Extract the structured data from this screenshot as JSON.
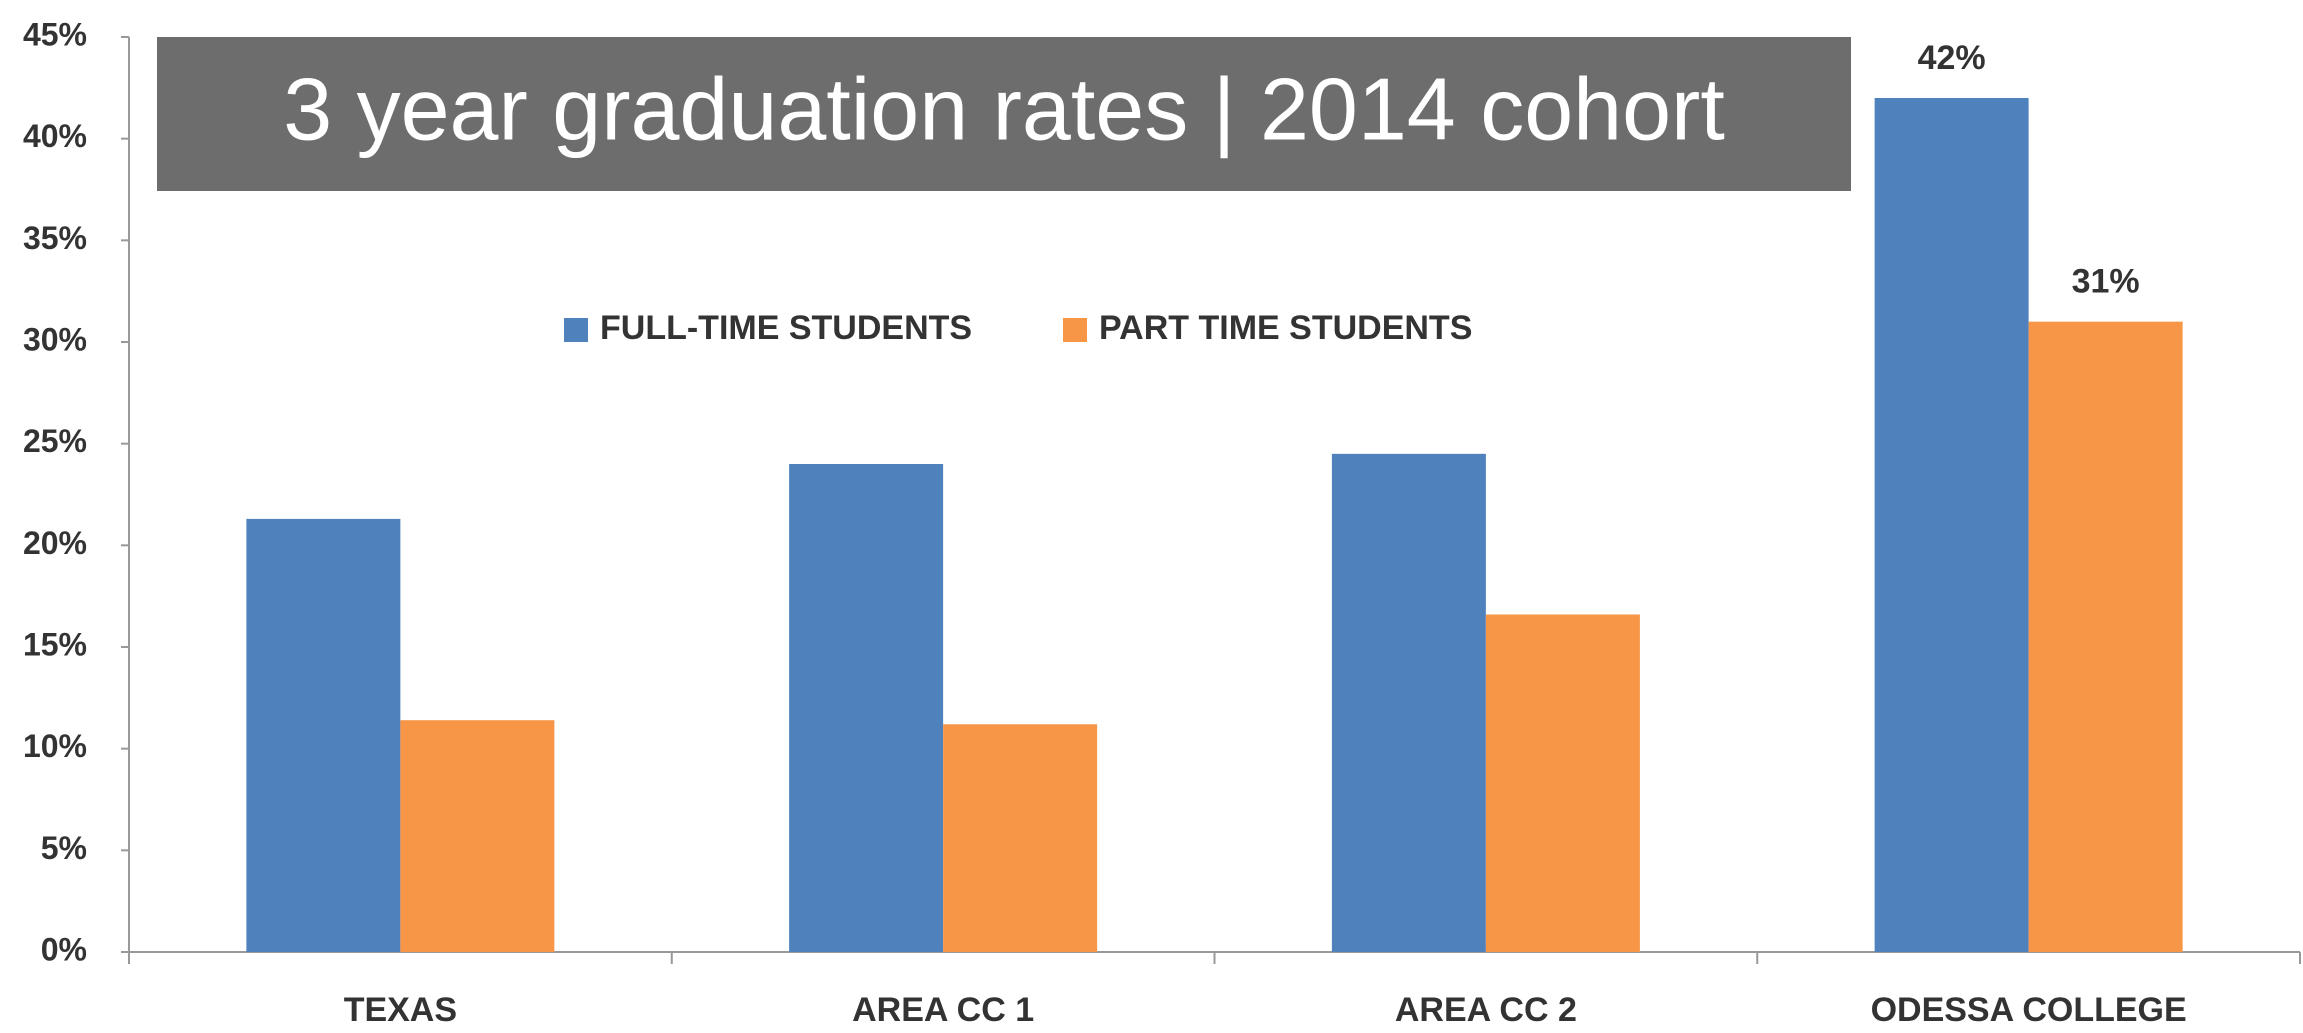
{
  "chart_data": {
    "type": "bar",
    "title": "3 year graduation rates | 2014 cohort",
    "categories": [
      "TEXAS",
      "AREA CC 1",
      "AREA CC 2",
      "ODESSA COLLEGE"
    ],
    "series": [
      {
        "name": "FULL-TIME STUDENTS",
        "color": "#4f81bd",
        "values": [
          21.3,
          24.0,
          24.5,
          42
        ],
        "value_labels": [
          null,
          null,
          null,
          "42%"
        ]
      },
      {
        "name": "PART TIME STUDENTS",
        "color": "#f79646",
        "values": [
          11.4,
          11.2,
          16.6,
          31
        ],
        "value_labels": [
          null,
          null,
          null,
          "31%"
        ]
      }
    ],
    "ylim": [
      0,
      45
    ],
    "yticks": [
      {
        "value": 0,
        "label": "0%"
      },
      {
        "value": 5,
        "label": "5%"
      },
      {
        "value": 10,
        "label": "10%"
      },
      {
        "value": 15,
        "label": "15%"
      },
      {
        "value": 20,
        "label": "20%"
      },
      {
        "value": 25,
        "label": "25%"
      },
      {
        "value": 30,
        "label": "30%"
      },
      {
        "value": 35,
        "label": "35%"
      },
      {
        "value": 40,
        "label": "40%"
      },
      {
        "value": 45,
        "label": "45%"
      }
    ],
    "grid": false,
    "legend": "top"
  }
}
